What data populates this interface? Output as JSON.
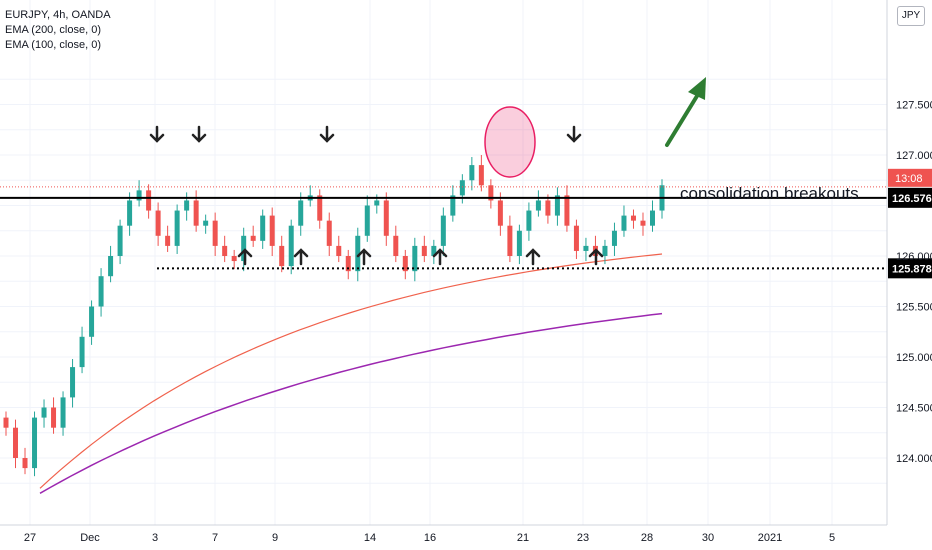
{
  "legend": {
    "symbol": "EURJPY, 4h, OANDA",
    "ema200": "EMA (200, close, 0)",
    "ema100": "EMA (100, close, 0)"
  },
  "currency_button": "JPY",
  "annotation": "consolidation breakouts",
  "colors": {
    "up": "#26a69a",
    "down": "#ef5350",
    "ema100": "#f0624d",
    "ema200": "#9c27b0",
    "arrow_up": "#2e7d32",
    "ellipse": "#e91e63"
  },
  "chart_data": {
    "type": "candlestick",
    "y_ticks": [
      "127.500",
      "127.000",
      "126.000",
      "125.500",
      "125.000",
      "124.500",
      "124.000"
    ],
    "x_ticks": [
      "27",
      "Dec",
      "3",
      "7",
      "9",
      "14",
      "16",
      "21",
      "23",
      "28",
      "30",
      "2021",
      "5"
    ],
    "resistance_level": 126.576,
    "support_level": 125.878,
    "resistance_label": "126.576",
    "support_label": "125.878",
    "countdown_label": "13:08",
    "last_price": 126.69,
    "resistance_touches": 4,
    "support_touches": 6,
    "ema100_start": 123.7,
    "ema100_end": 126.02,
    "ema200_start": 123.65,
    "ema200_end": 125.43,
    "price_path": [
      [
        124.4,
        124.3
      ],
      [
        124.3,
        124.0
      ],
      [
        124.0,
        123.9
      ],
      [
        123.9,
        124.4
      ],
      [
        124.4,
        124.5
      ],
      [
        124.5,
        124.3
      ],
      [
        124.3,
        124.6
      ],
      [
        124.6,
        124.9
      ],
      [
        124.9,
        125.2
      ],
      [
        125.2,
        125.5
      ],
      [
        125.5,
        125.8
      ],
      [
        125.8,
        126.0
      ],
      [
        126.0,
        126.3
      ],
      [
        126.3,
        126.55
      ],
      [
        126.55,
        126.65
      ],
      [
        126.65,
        126.45
      ],
      [
        126.45,
        126.2
      ],
      [
        126.2,
        126.1
      ],
      [
        126.1,
        126.45
      ],
      [
        126.45,
        126.55
      ],
      [
        126.55,
        126.3
      ],
      [
        126.3,
        126.35
      ],
      [
        126.35,
        126.1
      ],
      [
        126.1,
        126.0
      ],
      [
        126.0,
        125.95
      ],
      [
        125.95,
        126.2
      ],
      [
        126.2,
        126.15
      ],
      [
        126.15,
        126.4
      ],
      [
        126.4,
        126.1
      ],
      [
        126.1,
        125.9
      ],
      [
        125.9,
        126.3
      ],
      [
        126.3,
        126.55
      ],
      [
        126.55,
        126.6
      ],
      [
        126.6,
        126.35
      ],
      [
        126.35,
        126.1
      ],
      [
        126.1,
        126.0
      ],
      [
        126.0,
        125.85
      ],
      [
        125.85,
        126.2
      ],
      [
        126.2,
        126.5
      ],
      [
        126.5,
        126.55
      ],
      [
        126.55,
        126.2
      ],
      [
        126.2,
        126.0
      ],
      [
        126.0,
        125.85
      ],
      [
        125.85,
        126.1
      ],
      [
        126.1,
        126.0
      ],
      [
        126.0,
        126.1
      ],
      [
        126.1,
        126.4
      ],
      [
        126.4,
        126.6
      ],
      [
        126.6,
        126.75
      ],
      [
        126.75,
        126.9
      ],
      [
        126.9,
        126.7
      ],
      [
        126.7,
        126.55
      ],
      [
        126.55,
        126.3
      ],
      [
        126.3,
        126.0
      ],
      [
        126.0,
        126.25
      ],
      [
        126.25,
        126.45
      ],
      [
        126.45,
        126.55
      ],
      [
        126.55,
        126.4
      ],
      [
        126.4,
        126.6
      ],
      [
        126.6,
        126.3
      ],
      [
        126.3,
        126.05
      ],
      [
        126.05,
        126.1
      ],
      [
        126.1,
        126.0
      ],
      [
        126.0,
        126.1
      ],
      [
        126.1,
        126.25
      ],
      [
        126.25,
        126.4
      ],
      [
        126.4,
        126.35
      ],
      [
        126.35,
        126.3
      ],
      [
        126.3,
        126.45
      ],
      [
        126.45,
        126.7
      ]
    ]
  }
}
